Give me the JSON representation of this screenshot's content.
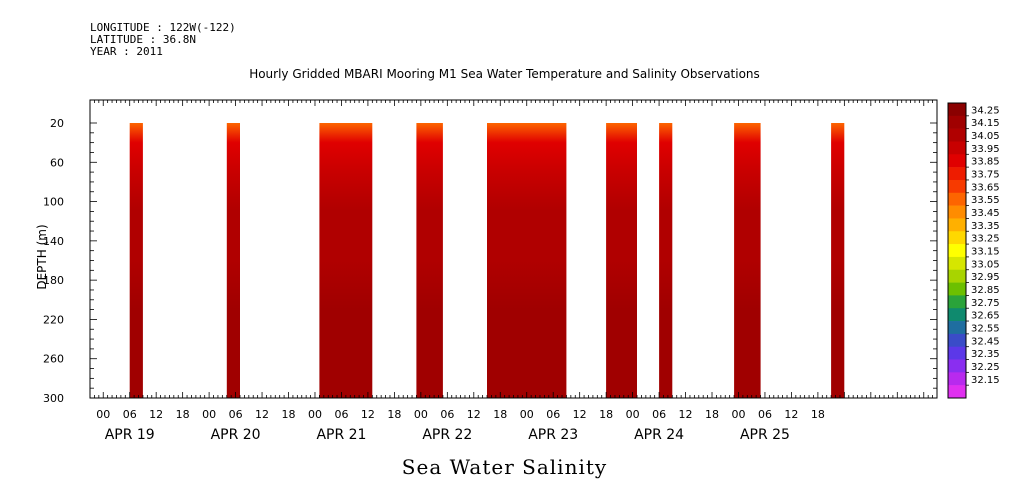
{
  "header": {
    "longitude": "LONGITUDE : 122W(-122)",
    "latitude": "LATITUDE : 36.8N",
    "year": "YEAR : 2011"
  },
  "chart_data": {
    "type": "heatmap",
    "title": "Hourly Gridded MBARI Mooring M1 Sea Water Temperature and Salinity Observations",
    "xlabel": "Sea Water Salinity",
    "ylabel": "DEPTH (m)",
    "y_ticks": [
      20,
      60,
      100,
      140,
      180,
      220,
      260,
      300
    ],
    "ylim": [
      300,
      20
    ],
    "x_hour_labels": [
      "00",
      "06",
      "12",
      "18",
      "00",
      "06",
      "12",
      "18",
      "00",
      "06",
      "12",
      "18",
      "00",
      "06",
      "12",
      "18",
      "00",
      "06",
      "12",
      "18",
      "00",
      "06",
      "12",
      "18",
      "00",
      "06",
      "12",
      "18"
    ],
    "x_day_labels": [
      "APR 19",
      "APR 20",
      "APR 21",
      "APR 22",
      "APR 23",
      "APR 24",
      "APR 25"
    ],
    "x_range_hours": [
      -3,
      189
    ],
    "data_blocks_hours": [
      [
        6,
        9
      ],
      [
        28,
        31
      ],
      [
        49,
        61
      ],
      [
        71,
        77
      ],
      [
        87,
        105
      ],
      [
        114,
        121
      ],
      [
        126,
        129
      ],
      [
        143,
        149
      ],
      [
        165,
        168
      ]
    ],
    "colorbar_labels": [
      "34.25",
      "34.15",
      "34.05",
      "33.95",
      "33.85",
      "33.75",
      "33.65",
      "33.55",
      "33.45",
      "33.35",
      "33.25",
      "33.15",
      "33.05",
      "32.95",
      "32.85",
      "32.75",
      "32.65",
      "32.55",
      "32.45",
      "32.35",
      "32.25",
      "32.15"
    ],
    "colorbar_colors": [
      "#8a0000",
      "#a00000",
      "#b00000",
      "#c80000",
      "#e00000",
      "#ee1c00",
      "#f73a00",
      "#fd6500",
      "#ff8c00",
      "#ffb000",
      "#ffd800",
      "#ffff00",
      "#d6e600",
      "#a8d400",
      "#6cc000",
      "#2aa33a",
      "#0f8a6e",
      "#1f6ea0",
      "#3a4cc8",
      "#5c38e8",
      "#8a2ef0",
      "#b82aee",
      "#e030f0"
    ],
    "depth_profile": [
      {
        "depth": 20,
        "value": 33.55
      },
      {
        "depth": 40,
        "value": 33.85
      },
      {
        "depth": 70,
        "value": 34.0
      },
      {
        "depth": 110,
        "value": 34.05
      },
      {
        "depth": 160,
        "value": 34.12
      },
      {
        "depth": 210,
        "value": 34.15
      },
      {
        "depth": 250,
        "value": 34.22
      },
      {
        "depth": 290,
        "value": 34.18
      },
      {
        "depth": 300,
        "value": 34.2
      }
    ]
  }
}
